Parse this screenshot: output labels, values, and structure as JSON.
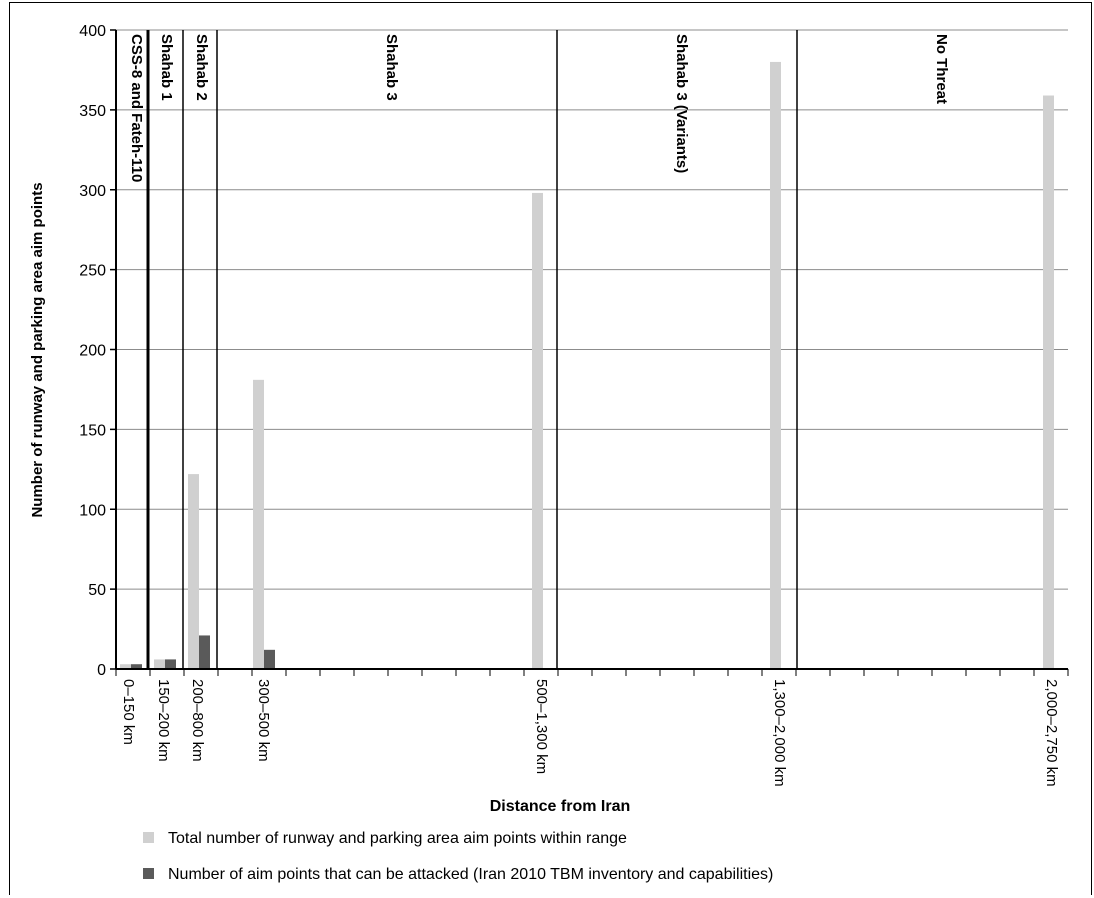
{
  "chart_data": {
    "type": "bar",
    "xlabel": "Distance from Iran",
    "ylabel": "Number of runway and parking area aim points",
    "ylim": [
      0,
      400
    ],
    "yticks": [
      0,
      50,
      100,
      150,
      200,
      250,
      300,
      350,
      400
    ],
    "grid": true,
    "legend_placement": "bottom",
    "categories": [
      "0–150 km",
      "150–200 km",
      "200–800 km",
      "300–500 km",
      "500–1,300 km",
      "1,300–2,000 km",
      "2,000–2,750 km"
    ],
    "series": [
      {
        "name": "Total number of runway and parking area aim points within range",
        "color": "#d0d0d0",
        "values": [
          3,
          6,
          122,
          181,
          298,
          380,
          359
        ]
      },
      {
        "name": "Number of aim points that can be attacked (Iran 2010 TBM inventory and capabilities)",
        "color": "#5a5a5a",
        "values": [
          3,
          6,
          21,
          12,
          0,
          0,
          0
        ]
      }
    ],
    "regions": [
      {
        "label": "CSS-8 and Fateh-110"
      },
      {
        "label": "Shahab 1"
      },
      {
        "label": "Shahab 2"
      },
      {
        "label": "Shahab 3"
      },
      {
        "label": "Shahab 3 (Variants)"
      },
      {
        "label": "No Threat"
      }
    ]
  }
}
